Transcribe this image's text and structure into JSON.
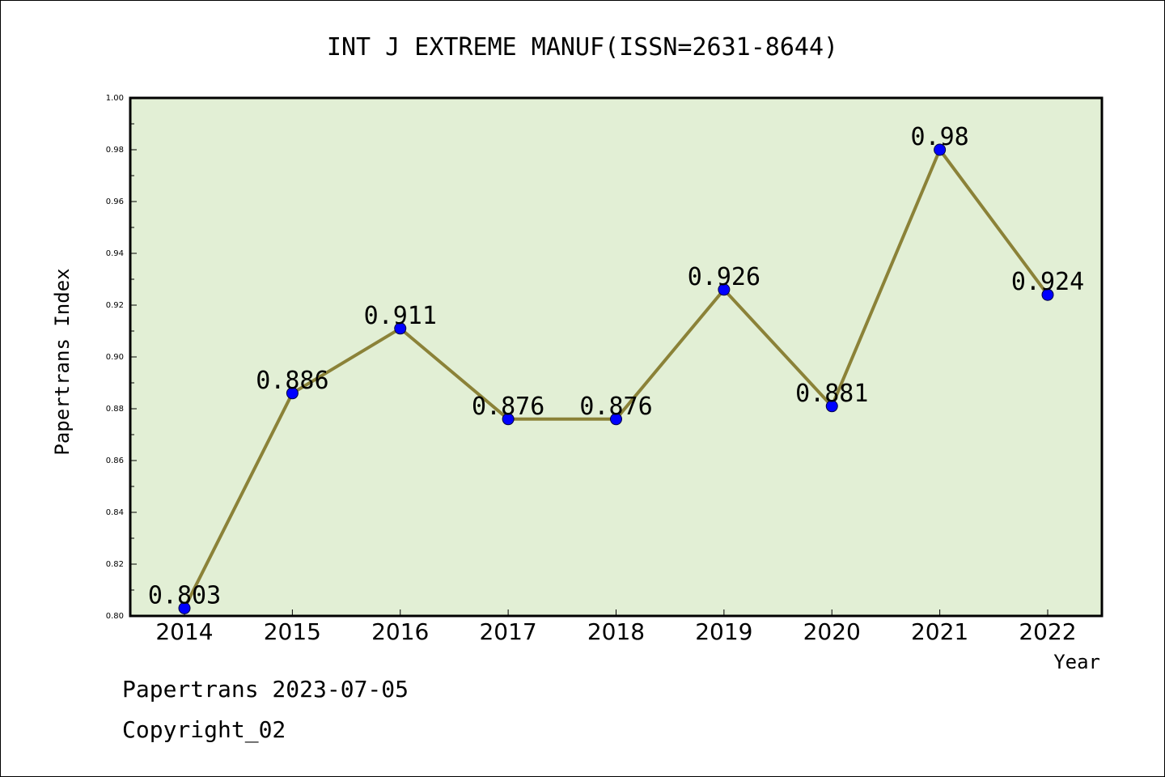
{
  "chart_data": {
    "type": "line",
    "title": "INT J EXTREME MANUF(ISSN=2631-8644)",
    "xlabel": "Year",
    "ylabel": "Papertrans Index",
    "categories": [
      "2014",
      "2015",
      "2016",
      "2017",
      "2018",
      "2019",
      "2020",
      "2021",
      "2022"
    ],
    "values": [
      0.803,
      0.886,
      0.911,
      0.876,
      0.876,
      0.926,
      0.881,
      0.98,
      0.924
    ],
    "data_labels": [
      "0.803",
      "0.886",
      "0.911",
      "0.876",
      "0.876",
      "0.926",
      "0.881",
      "0.98",
      "0.924"
    ],
    "ylim": [
      0.8,
      1.0
    ],
    "yticks": [
      "0.80",
      "0.82",
      "0.84",
      "0.86",
      "0.88",
      "0.90",
      "0.92",
      "0.94",
      "0.96",
      "0.98",
      "1.00"
    ],
    "grid": false,
    "legend": "none",
    "colors": {
      "plot_background": "#e2efd5",
      "line": "#8b8238",
      "marker": "#0000ff",
      "axis": "#000000"
    }
  },
  "footer": {
    "source": "Papertrans 2023-07-05",
    "copyright": "Copyright_02"
  }
}
